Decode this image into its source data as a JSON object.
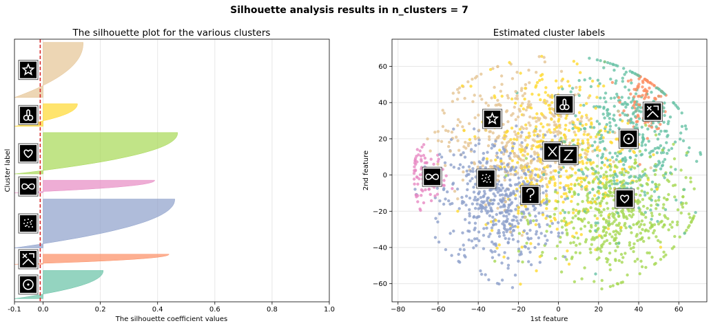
{
  "suptitle": "Silhouette analysis results in n_clusters = 7",
  "colors": {
    "c0": "#66c2a5",
    "c1": "#fc8d62",
    "c2": "#8da0cb",
    "c3": "#e78ac3",
    "c4": "#a6d854",
    "c5": "#ffd92f",
    "c6": "#e5c494",
    "avg_line": "#d62728"
  },
  "chart_data": [
    {
      "type": "area",
      "title": "The silhouette plot for the various clusters",
      "xlabel": "The silhouette coefficient values",
      "ylabel": "Cluster label",
      "xlim": [
        -0.1,
        1.0
      ],
      "xticks": [
        -0.1,
        0.0,
        0.2,
        0.4,
        0.6,
        0.8,
        1.0
      ],
      "xtick_labels": [
        "-0.1",
        "0.0",
        "0.2",
        "0.4",
        "0.6",
        "0.8",
        "1.0"
      ],
      "grid": true,
      "average_silhouette": -0.01,
      "clusters": [
        {
          "label": 0,
          "icon": "circle-dot-icon",
          "max": 0.21,
          "min": -0.1,
          "size": 45
        },
        {
          "label": 1,
          "icon": "collage-icon",
          "max": 0.44,
          "min": -0.1,
          "size": 16
        },
        {
          "label": 2,
          "icon": "dots-icon",
          "max": 0.46,
          "min": -0.1,
          "size": 78
        },
        {
          "label": 3,
          "icon": "infinity-icon",
          "max": 0.39,
          "min": -0.1,
          "size": 20
        },
        {
          "label": 4,
          "icon": "heart-icon",
          "max": 0.47,
          "min": -0.1,
          "size": 66
        },
        {
          "label": 5,
          "icon": "figure-icon",
          "max": 0.12,
          "min": -0.1,
          "size": 36
        },
        {
          "label": 6,
          "icon": "star-icon",
          "max": 0.14,
          "min": -0.1,
          "size": 88
        }
      ]
    },
    {
      "type": "scatter",
      "title": "Estimated cluster labels",
      "xlabel": "1st feature",
      "ylabel": "2nd feature",
      "xlim": [
        -83,
        74
      ],
      "ylim": [
        -70,
        75
      ],
      "xticks": [
        -80,
        -60,
        -40,
        -20,
        0,
        20,
        40,
        60
      ],
      "yticks": [
        -60,
        -40,
        -20,
        0,
        20,
        40,
        60
      ],
      "grid": true,
      "clusters": [
        {
          "label": 0,
          "icon": "circle-dot-icon",
          "center": [
            35,
            20
          ],
          "spread": [
            16,
            22
          ],
          "count": 420
        },
        {
          "label": 1,
          "icon": "collage-icon",
          "center": [
            44,
            42
          ],
          "spread": [
            6,
            9
          ],
          "count": 110
        },
        {
          "label": 2,
          "icon": "dots-icon",
          "center": [
            -30,
            -15
          ],
          "spread": [
            14,
            18
          ],
          "count": 520
        },
        {
          "label": 3,
          "icon": "infinity-icon",
          "center": [
            -66,
            0
          ],
          "spread": [
            5,
            7
          ],
          "count": 90
        },
        {
          "label": 4,
          "icon": "heart-icon",
          "center": [
            28,
            -22
          ],
          "spread": [
            18,
            17
          ],
          "count": 520
        },
        {
          "label": 5,
          "icon": "figure-icon",
          "center": [
            0,
            12
          ],
          "spread": [
            18,
            24
          ],
          "count": 450
        },
        {
          "label": 6,
          "icon": "star-icon",
          "center": [
            -20,
            22
          ],
          "spread": [
            20,
            18
          ],
          "count": 380
        }
      ],
      "image_markers": [
        {
          "icon": "star-icon",
          "x": -33,
          "y": 31
        },
        {
          "icon": "figure-icon",
          "x": 3,
          "y": 39
        },
        {
          "icon": "collage-icon",
          "x": 47,
          "y": 35
        },
        {
          "icon": "circle-dot-icon",
          "x": 35,
          "y": 20
        },
        {
          "icon": "x-letter-icon",
          "x": -3,
          "y": 13
        },
        {
          "icon": "z-letter-icon",
          "x": 5,
          "y": 11
        },
        {
          "icon": "infinity-icon",
          "x": -63,
          "y": -1
        },
        {
          "icon": "dots-icon",
          "x": -36,
          "y": -2
        },
        {
          "icon": "question-icon",
          "x": -14,
          "y": -11
        },
        {
          "icon": "heart-icon",
          "x": 33,
          "y": -13
        }
      ]
    }
  ]
}
